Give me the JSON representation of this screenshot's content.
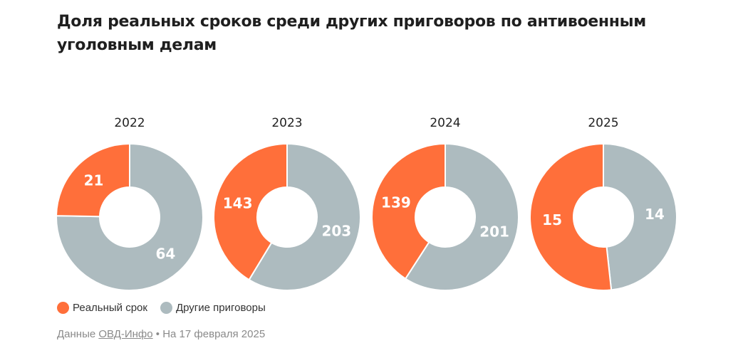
{
  "title": "Доля реальных сроков среди других приговоров по антивоенным уголовным делам",
  "colors": {
    "real": "#ff6f3a",
    "other": "#adbbbf"
  },
  "legend": {
    "real_label": "Реальный срок",
    "other_label": "Другие приговоры"
  },
  "source": {
    "prefix": "Данные",
    "link_text": "ОВД-Инфо",
    "suffix": "• На 17 февраля 2025"
  },
  "chart_data": {
    "type": "pie",
    "series": [
      {
        "name": "Реальный срок"
      },
      {
        "name": "Другие приговоры"
      }
    ],
    "charts": [
      {
        "year": "2022",
        "real": 21,
        "other": 64
      },
      {
        "year": "2023",
        "real": 143,
        "other": 203
      },
      {
        "year": "2024",
        "real": 139,
        "other": 201
      },
      {
        "year": "2025",
        "real": 15,
        "other": 14
      }
    ]
  }
}
